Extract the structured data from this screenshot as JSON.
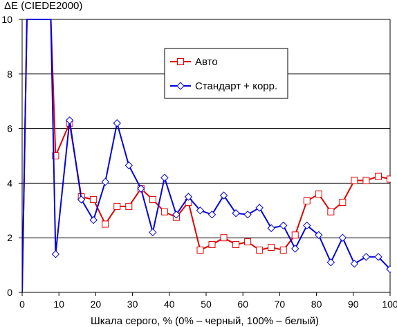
{
  "chart_data": {
    "type": "line",
    "title": "",
    "ylabel": "ΔE (CIEDE2000)",
    "xlabel": "Шкала серого, % (0% – черный, 100% – белый)",
    "xlim": [
      0,
      100
    ],
    "ylim": [
      0,
      10
    ],
    "xticks": [
      0,
      10,
      20,
      30,
      40,
      50,
      60,
      70,
      80,
      90,
      100
    ],
    "yticks": [
      0,
      2,
      4,
      6,
      8,
      10
    ],
    "grid": "horizontal",
    "legend_position": "inside-top-center",
    "series": [
      {
        "name": "Авто",
        "color": "#e00000",
        "marker": "square",
        "x": [
          0,
          1.3,
          6.5,
          7.8,
          9.1,
          12.9,
          16.1,
          19.4,
          22.6,
          25.8,
          29.0,
          32.3,
          35.5,
          38.7,
          41.9,
          45.2,
          48.4,
          51.6,
          54.8,
          58.1,
          61.3,
          64.5,
          67.7,
          71.0,
          74.2,
          77.4,
          80.6,
          83.9,
          87.1,
          90.3,
          93.5,
          96.8,
          100
        ],
        "y": [
          0,
          10,
          10,
          10,
          5.0,
          6.2,
          3.5,
          3.4,
          2.5,
          3.15,
          3.15,
          3.8,
          3.4,
          2.95,
          2.75,
          3.3,
          1.55,
          1.75,
          2.0,
          1.75,
          1.85,
          1.55,
          1.65,
          1.55,
          2.1,
          3.35,
          3.6,
          2.95,
          3.3,
          4.1,
          4.1,
          4.25,
          4.15
        ]
      },
      {
        "name": "Стандарт + корр.",
        "color": "#0000e0",
        "marker": "diamond",
        "x": [
          0,
          1.3,
          6.5,
          7.8,
          9.1,
          12.9,
          16.1,
          19.4,
          22.6,
          25.8,
          29.0,
          32.3,
          35.5,
          38.7,
          41.9,
          45.2,
          48.4,
          51.6,
          54.8,
          58.1,
          61.3,
          64.5,
          67.7,
          71.0,
          74.2,
          77.4,
          80.6,
          83.9,
          87.1,
          90.3,
          93.5,
          96.8,
          100
        ],
        "y": [
          0,
          10,
          10,
          10,
          1.4,
          6.3,
          3.4,
          2.65,
          4.05,
          6.2,
          4.65,
          3.8,
          2.2,
          4.2,
          2.85,
          3.5,
          3.0,
          2.85,
          3.55,
          2.9,
          2.85,
          3.1,
          2.35,
          2.45,
          1.6,
          2.45,
          2.1,
          1.1,
          2.0,
          1.05,
          1.3,
          1.3,
          0.85
        ]
      }
    ]
  }
}
